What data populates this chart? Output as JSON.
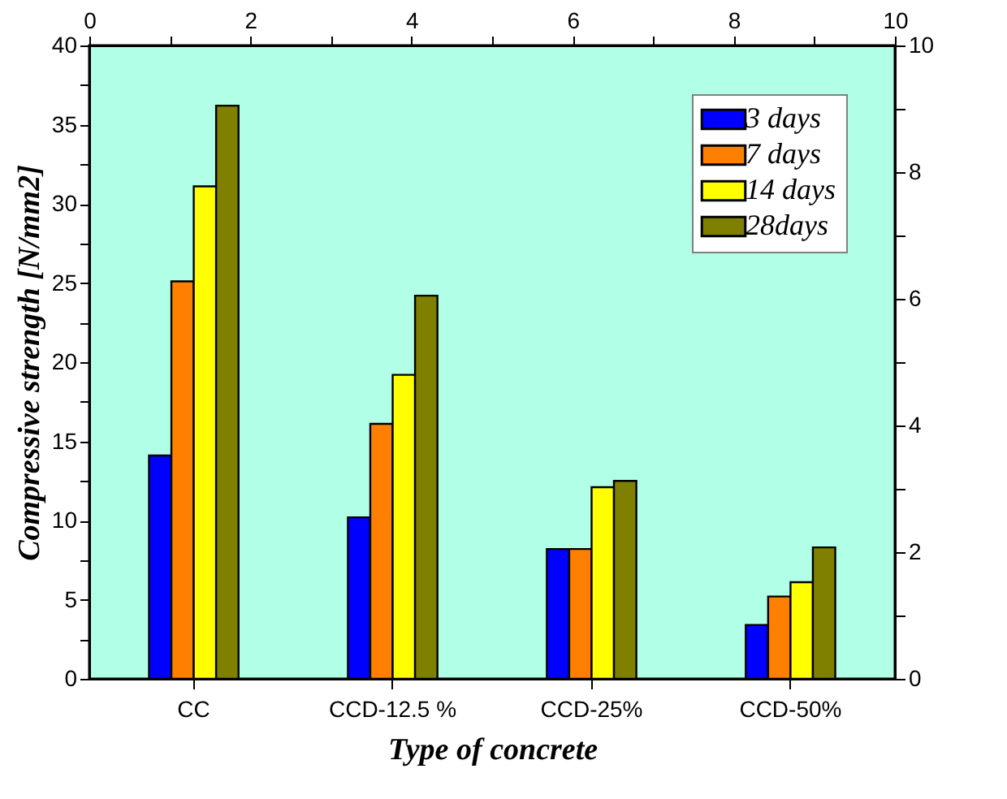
{
  "chart_data": {
    "type": "bar",
    "xlabel": "Type of concrete",
    "ylabel": "Compressive strength [N/mm2]",
    "categories": [
      "CC",
      "CCD-12.5 %",
      "CCD-25%",
      "CCD-50%"
    ],
    "series": [
      {
        "name": "3 days",
        "color": "#0000ff",
        "values": [
          14.1,
          10.2,
          8.2,
          3.4
        ]
      },
      {
        "name": "7 days",
        "color": "#ff8000",
        "values": [
          25.1,
          16.1,
          8.2,
          5.2
        ]
      },
      {
        "name": "14 days",
        "color": "#ffff00",
        "values": [
          31.1,
          19.2,
          12.1,
          6.1
        ]
      },
      {
        "name": "28days",
        "color": "#808000",
        "values": [
          36.2,
          24.2,
          12.5,
          8.3
        ]
      }
    ],
    "ylim": [
      0,
      40
    ],
    "yticks": [
      0,
      {
        "value": 2.5,
        "label": null
      },
      5,
      {
        "value": 7.5,
        "label": null
      },
      10,
      {
        "value": 12.5,
        "label": null
      },
      15,
      {
        "value": 17.5,
        "label": null
      },
      20,
      {
        "value": 22.5,
        "label": null
      },
      25,
      {
        "value": 27.5,
        "label": null
      },
      30,
      {
        "value": 32.5,
        "label": null
      },
      35,
      {
        "value": 37.5,
        "label": null
      },
      40
    ],
    "x2lim": [
      0,
      10
    ],
    "x2ticks": [
      0,
      {
        "value": 1,
        "label": null
      },
      2,
      {
        "value": 3,
        "label": null
      },
      4,
      {
        "value": 5,
        "label": null
      },
      6,
      {
        "value": 7,
        "label": null
      },
      8,
      {
        "value": 9,
        "label": null
      },
      10
    ],
    "y2lim": [
      0,
      10
    ],
    "y2ticks": [
      0,
      {
        "value": 1,
        "label": null
      },
      2,
      {
        "value": 3,
        "label": null
      },
      4,
      {
        "value": 5,
        "label": null
      },
      6,
      {
        "value": 7,
        "label": null
      },
      8,
      {
        "value": 9,
        "label": null
      },
      10
    ],
    "legend": "top right",
    "grid": false
  }
}
